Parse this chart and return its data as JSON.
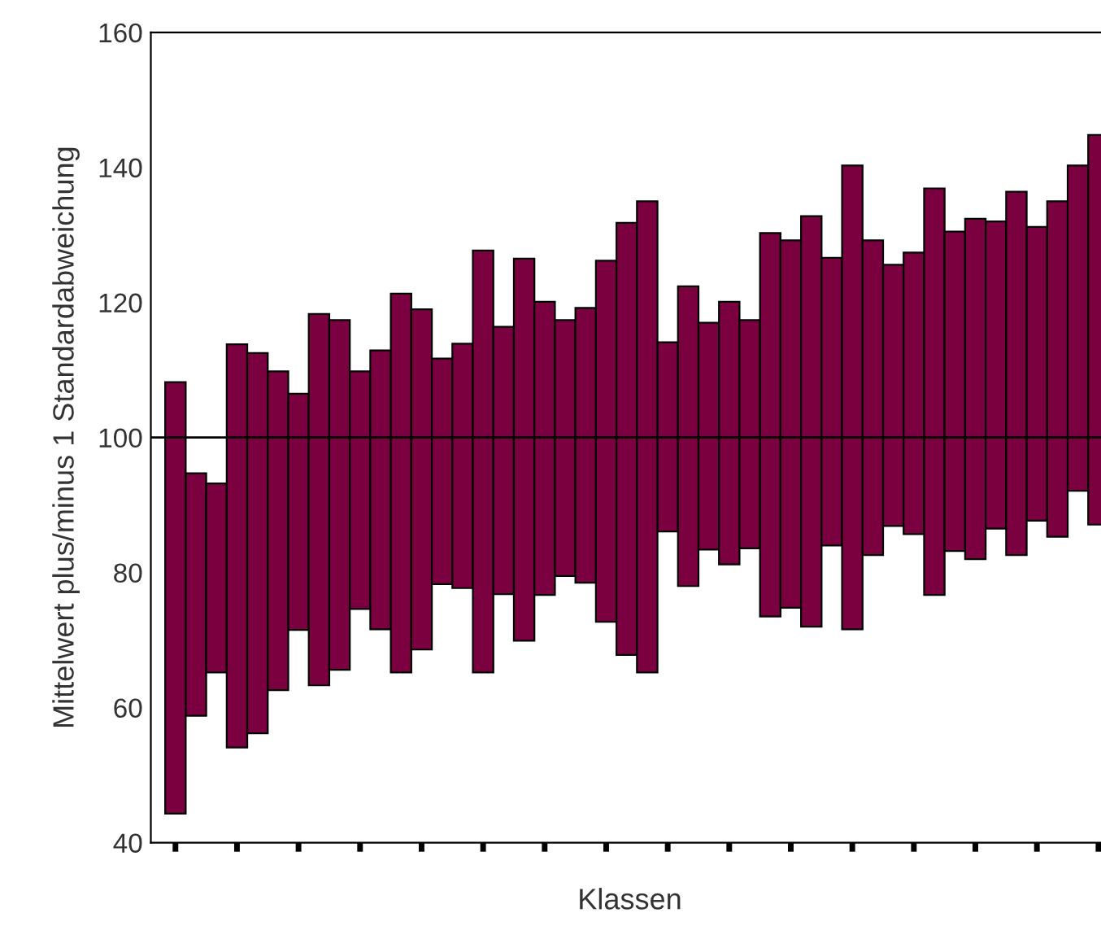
{
  "chart_data": {
    "type": "bar",
    "xlabel": "Klassen",
    "ylabel": "Mittelwert plus/minus 1 Standardabweichung",
    "categories": [
      null,
      null,
      null,
      null,
      null,
      null,
      null,
      null,
      null,
      null,
      null,
      null,
      null,
      null,
      null,
      null,
      null,
      null,
      null,
      null,
      null,
      null,
      null,
      null,
      null,
      null,
      null,
      null,
      null,
      null,
      null,
      null,
      null,
      null,
      null,
      null,
      null,
      null,
      null,
      null,
      null,
      null,
      null,
      null,
      null,
      null
    ],
    "base": [
      44.3,
      58.8,
      65.2,
      54.1,
      56.2,
      62.6,
      71.5,
      63.3,
      65.6,
      74.6,
      71.6,
      65.2,
      68.6,
      78.3,
      77.7,
      65.2,
      76.8,
      69.9,
      76.7,
      79.5,
      78.5,
      72.7,
      67.8,
      65.2,
      86.1,
      78.0,
      83.4,
      81.2,
      83.6,
      73.5,
      74.8,
      72.0,
      84.0,
      71.6,
      82.6,
      86.9,
      85.7,
      76.7,
      83.2,
      82.0,
      86.5,
      82.6,
      87.7,
      85.3,
      92.1,
      87.1
    ],
    "values": [
      63.9,
      35.9,
      28.0,
      59.7,
      56.3,
      47.2,
      35.0,
      55.0,
      51.8,
      35.2,
      41.3,
      56.1,
      50.4,
      33.4,
      36.2,
      62.5,
      39.6,
      56.6,
      43.4,
      37.9,
      40.7,
      53.5,
      64.0,
      69.8,
      28.0,
      44.4,
      33.6,
      38.9,
      33.8,
      56.8,
      54.4,
      60.8,
      42.6,
      68.7,
      46.6,
      38.7,
      41.7,
      60.2,
      47.3,
      50.4,
      45.5,
      53.8,
      43.5,
      49.7,
      48.2,
      57.7
    ],
    "color": "#7a0040",
    "ylim": [
      40,
      160
    ],
    "yticks": [
      40,
      60,
      80,
      100,
      120,
      140,
      160
    ],
    "ref_lines": [
      {
        "axis": "y",
        "value": 100,
        "color": "#000000"
      }
    ],
    "tick_labels": "y",
    "grid": false,
    "legend": false
  }
}
